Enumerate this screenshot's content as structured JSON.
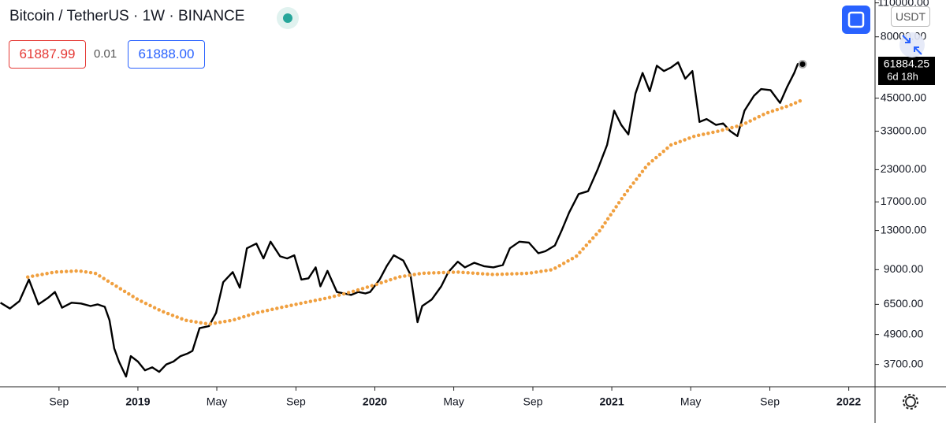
{
  "header": {
    "title": "Bitcoin / TetherUS · 1W · BINANCE",
    "bid": "61887.99",
    "spread": "0.01",
    "ask": "61888.00",
    "currency": "USDT",
    "countdown": "6d 18h"
  },
  "chart_data": {
    "type": "line",
    "log_scale": true,
    "last_price": 61884.25,
    "xlim": [
      2018.418,
      2022.111
    ],
    "ylim": [
      3000,
      113000
    ],
    "xticks": [
      {
        "value": 2018.667,
        "label": "Sep"
      },
      {
        "value": 2019,
        "label": "2019"
      },
      {
        "value": 2019.333,
        "label": "May"
      },
      {
        "value": 2019.667,
        "label": "Sep"
      },
      {
        "value": 2020,
        "label": "2020"
      },
      {
        "value": 2020.333,
        "label": "May"
      },
      {
        "value": 2020.667,
        "label": "Sep"
      },
      {
        "value": 2021,
        "label": "2021"
      },
      {
        "value": 2021.333,
        "label": "May"
      },
      {
        "value": 2021.667,
        "label": "Sep"
      },
      {
        "value": 2022,
        "label": "2022"
      }
    ],
    "yticks": [
      {
        "value": 3700,
        "label": "3700.00"
      },
      {
        "value": 4900,
        "label": "4900.00"
      },
      {
        "value": 6500,
        "label": "6500.00"
      },
      {
        "value": 9000,
        "label": "9000.00"
      },
      {
        "value": 13000,
        "label": "13000.00"
      },
      {
        "value": 17000,
        "label": "17000.00"
      },
      {
        "value": 23000,
        "label": "23000.00"
      },
      {
        "value": 33000,
        "label": "33000.00"
      },
      {
        "value": 45000,
        "label": "45000.00"
      },
      {
        "value": 80000,
        "label": "80000.00"
      },
      {
        "value": 110000,
        "label": "110000.00"
      }
    ],
    "series": [
      {
        "style": "line",
        "color": "#000000",
        "x": [
          2018.42,
          2018.46,
          2018.5,
          2018.54,
          2018.58,
          2018.62,
          2018.65,
          2018.68,
          2018.72,
          2018.76,
          2018.8,
          2018.83,
          2018.86,
          2018.88,
          2018.9,
          2018.92,
          2018.95,
          2018.97,
          2019.0,
          2019.03,
          2019.06,
          2019.09,
          2019.12,
          2019.15,
          2019.18,
          2019.21,
          2019.23,
          2019.26,
          2019.3,
          2019.33,
          2019.36,
          2019.4,
          2019.43,
          2019.46,
          2019.5,
          2019.53,
          2019.56,
          2019.6,
          2019.63,
          2019.66,
          2019.69,
          2019.72,
          2019.75,
          2019.77,
          2019.8,
          2019.84,
          2019.87,
          2019.9,
          2019.93,
          2019.96,
          2019.98,
          2020.02,
          2020.05,
          2020.08,
          2020.12,
          2020.15,
          2020.18,
          2020.2,
          2020.24,
          2020.28,
          2020.31,
          2020.35,
          2020.38,
          2020.42,
          2020.46,
          2020.5,
          2020.54,
          2020.57,
          2020.61,
          2020.65,
          2020.69,
          2020.72,
          2020.76,
          2020.79,
          2020.82,
          2020.86,
          2020.9,
          2020.94,
          2020.98,
          2021.01,
          2021.04,
          2021.07,
          2021.1,
          2021.13,
          2021.16,
          2021.19,
          2021.22,
          2021.25,
          2021.28,
          2021.31,
          2021.34,
          2021.37,
          2021.4,
          2021.44,
          2021.47,
          2021.5,
          2021.53,
          2021.56,
          2021.6,
          2021.63,
          2021.67,
          2021.71,
          2021.74,
          2021.77,
          2021.785,
          2021.805
        ],
        "values": [
          6600,
          6250,
          6700,
          8200,
          6500,
          6900,
          7300,
          6300,
          6600,
          6550,
          6400,
          6500,
          6350,
          5600,
          4300,
          3800,
          3300,
          4000,
          3800,
          3500,
          3600,
          3450,
          3700,
          3800,
          4000,
          4100,
          4200,
          5200,
          5300,
          6000,
          8000,
          8800,
          7600,
          11000,
          11500,
          10000,
          11700,
          10200,
          10000,
          10300,
          8200,
          8300,
          9200,
          7700,
          8900,
          7300,
          7200,
          7100,
          7300,
          7200,
          7300,
          8200,
          9300,
          10300,
          9800,
          8600,
          5500,
          6400,
          6800,
          7700,
          8800,
          9700,
          9200,
          9600,
          9300,
          9200,
          9400,
          11000,
          11700,
          11600,
          10500,
          10700,
          11300,
          13100,
          15400,
          18300,
          18800,
          23000,
          29000,
          40000,
          35000,
          32000,
          47000,
          57000,
          48000,
          61000,
          58000,
          60000,
          63000,
          54000,
          58000,
          36000,
          37000,
          35000,
          35500,
          33000,
          31500,
          40000,
          46000,
          49000,
          48500,
          43000,
          50000,
          57000,
          62000,
          61884.25
        ]
      },
      {
        "style": "dots",
        "color": "#f0a040",
        "x": [
          2018.535,
          2018.65,
          2018.75,
          2018.82,
          2018.9,
          2019.0,
          2019.1,
          2019.2,
          2019.3,
          2019.4,
          2019.5,
          2019.6,
          2019.7,
          2019.8,
          2019.9,
          2020.0,
          2020.1,
          2020.2,
          2020.35,
          2020.5,
          2020.65,
          2020.75,
          2020.85,
          2020.95,
          2021.05,
          2021.15,
          2021.25,
          2021.35,
          2021.45,
          2021.55,
          2021.65,
          2021.75,
          2021.81
        ],
        "values": [
          8400,
          8800,
          8900,
          8700,
          7800,
          6800,
          6100,
          5600,
          5400,
          5600,
          6000,
          6300,
          6600,
          6900,
          7300,
          7800,
          8400,
          8700,
          8800,
          8600,
          8700,
          9000,
          10200,
          13000,
          18000,
          24000,
          29000,
          31500,
          33000,
          35000,
          39000,
          42000,
          44500
        ]
      }
    ]
  }
}
